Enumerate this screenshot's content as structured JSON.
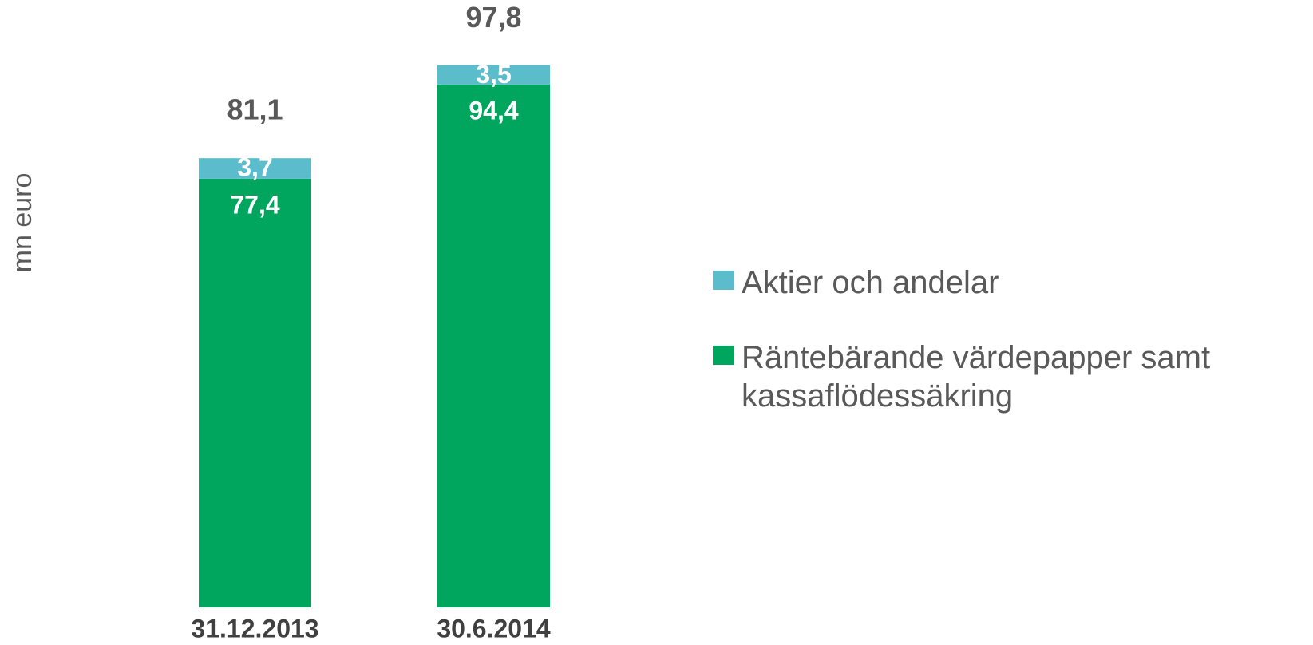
{
  "chart_data": {
    "type": "stacked_bar",
    "y_label": "mn euro",
    "categories": [
      "31.12.2013",
      "30.6.2014"
    ],
    "series": [
      {
        "name": "Räntebärande värdepapper samt kassaflödessäkring",
        "color": "#00a65d",
        "values": [
          77.4,
          94.4
        ],
        "value_labels": [
          "77,4",
          "94,4"
        ]
      },
      {
        "name": "Aktier och andelar",
        "color": "#5bbccb",
        "values": [
          3.7,
          3.5
        ],
        "value_labels": [
          "3,7",
          "3,5"
        ]
      }
    ],
    "totals": [
      81.1,
      97.8
    ],
    "total_labels": [
      "81,1",
      "97,8"
    ],
    "ylim": [
      0,
      100
    ],
    "legend": "right"
  }
}
